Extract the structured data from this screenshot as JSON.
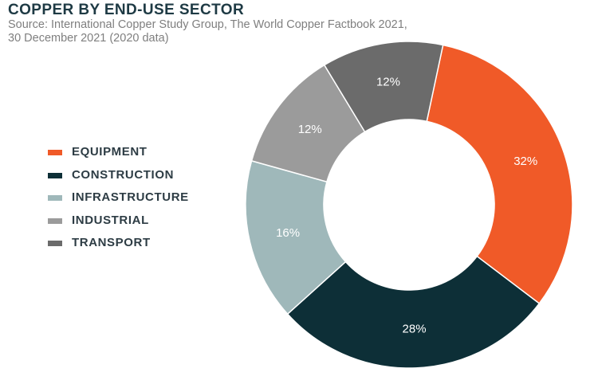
{
  "header": {
    "title": "COPPER BY END-USE SECTOR",
    "source_line1": "Source: International Copper Study Group, The World Copper Factbook 2021,",
    "source_line2": "30 December 2021 (2020 data)"
  },
  "legend": [
    {
      "label": "EQUIPMENT",
      "color": "#f05a28"
    },
    {
      "label": "CONSTRUCTION",
      "color": "#0d2f37"
    },
    {
      "label": "INFRASTRUCTURE",
      "color": "#9fb8ba"
    },
    {
      "label": "INDUSTRIAL",
      "color": "#9b9b9b"
    },
    {
      "label": "TRANSPORT",
      "color": "#6b6b6b"
    }
  ],
  "chart_data": {
    "type": "pie",
    "donut": true,
    "title": "COPPER BY END-USE SECTOR",
    "categories": [
      "EQUIPMENT",
      "CONSTRUCTION",
      "INFRASTRUCTURE",
      "INDUSTRIAL",
      "TRANSPORT"
    ],
    "values": [
      32,
      28,
      16,
      12,
      12
    ],
    "data_labels": [
      "32%",
      "28%",
      "16%",
      "12%",
      "12%"
    ],
    "colors": [
      "#f05a28",
      "#0d2f37",
      "#9fb8ba",
      "#9b9b9b",
      "#6b6b6b"
    ],
    "legend_position": "left"
  }
}
